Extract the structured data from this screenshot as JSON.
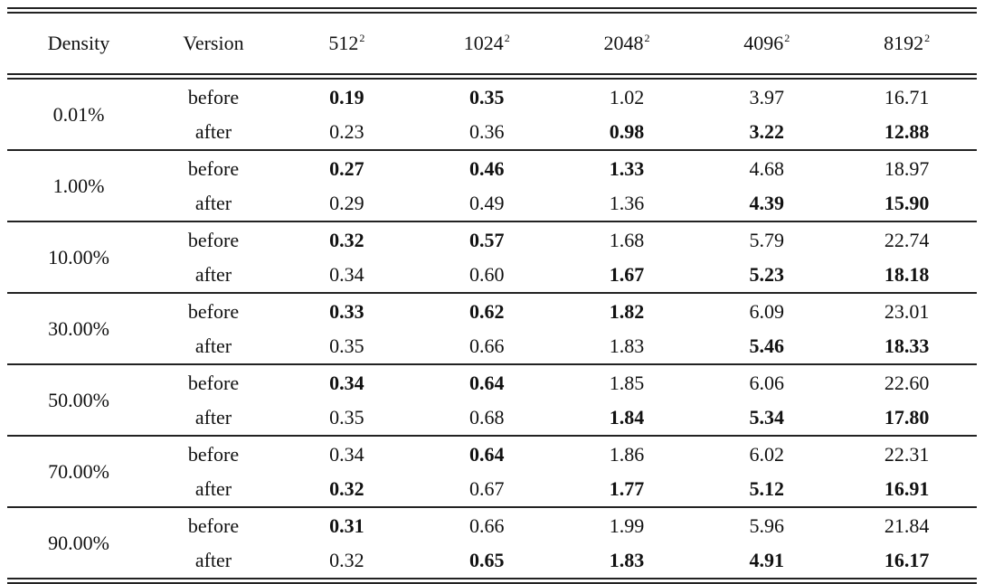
{
  "header": {
    "density": "Density",
    "version": "Version",
    "sizes": [
      {
        "base": "512",
        "exp": "2"
      },
      {
        "base": "1024",
        "exp": "2"
      },
      {
        "base": "2048",
        "exp": "2"
      },
      {
        "base": "4096",
        "exp": "2"
      },
      {
        "base": "8192",
        "exp": "2"
      }
    ]
  },
  "groups": [
    {
      "density": "0.01%",
      "rows": [
        {
          "version": "before",
          "values": [
            "0.19",
            "0.35",
            "1.02",
            "3.97",
            "16.71"
          ],
          "bold": [
            true,
            true,
            false,
            false,
            false
          ]
        },
        {
          "version": "after",
          "values": [
            "0.23",
            "0.36",
            "0.98",
            "3.22",
            "12.88"
          ],
          "bold": [
            false,
            false,
            true,
            true,
            true
          ]
        }
      ]
    },
    {
      "density": "1.00%",
      "rows": [
        {
          "version": "before",
          "values": [
            "0.27",
            "0.46",
            "1.33",
            "4.68",
            "18.97"
          ],
          "bold": [
            true,
            true,
            true,
            false,
            false
          ]
        },
        {
          "version": "after",
          "values": [
            "0.29",
            "0.49",
            "1.36",
            "4.39",
            "15.90"
          ],
          "bold": [
            false,
            false,
            false,
            true,
            true
          ]
        }
      ]
    },
    {
      "density": "10.00%",
      "rows": [
        {
          "version": "before",
          "values": [
            "0.32",
            "0.57",
            "1.68",
            "5.79",
            "22.74"
          ],
          "bold": [
            true,
            true,
            false,
            false,
            false
          ]
        },
        {
          "version": "after",
          "values": [
            "0.34",
            "0.60",
            "1.67",
            "5.23",
            "18.18"
          ],
          "bold": [
            false,
            false,
            true,
            true,
            true
          ]
        }
      ]
    },
    {
      "density": "30.00%",
      "rows": [
        {
          "version": "before",
          "values": [
            "0.33",
            "0.62",
            "1.82",
            "6.09",
            "23.01"
          ],
          "bold": [
            true,
            true,
            true,
            false,
            false
          ]
        },
        {
          "version": "after",
          "values": [
            "0.35",
            "0.66",
            "1.83",
            "5.46",
            "18.33"
          ],
          "bold": [
            false,
            false,
            false,
            true,
            true
          ]
        }
      ]
    },
    {
      "density": "50.00%",
      "rows": [
        {
          "version": "before",
          "values": [
            "0.34",
            "0.64",
            "1.85",
            "6.06",
            "22.60"
          ],
          "bold": [
            true,
            true,
            false,
            false,
            false
          ]
        },
        {
          "version": "after",
          "values": [
            "0.35",
            "0.68",
            "1.84",
            "5.34",
            "17.80"
          ],
          "bold": [
            false,
            false,
            true,
            true,
            true
          ]
        }
      ]
    },
    {
      "density": "70.00%",
      "rows": [
        {
          "version": "before",
          "values": [
            "0.34",
            "0.64",
            "1.86",
            "6.02",
            "22.31"
          ],
          "bold": [
            false,
            true,
            false,
            false,
            false
          ]
        },
        {
          "version": "after",
          "values": [
            "0.32",
            "0.67",
            "1.77",
            "5.12",
            "16.91"
          ],
          "bold": [
            true,
            false,
            true,
            true,
            true
          ]
        }
      ]
    },
    {
      "density": "90.00%",
      "rows": [
        {
          "version": "before",
          "values": [
            "0.31",
            "0.66",
            "1.99",
            "5.96",
            "21.84"
          ],
          "bold": [
            true,
            false,
            false,
            false,
            false
          ]
        },
        {
          "version": "after",
          "values": [
            "0.32",
            "0.65",
            "1.83",
            "4.91",
            "16.17"
          ],
          "bold": [
            false,
            true,
            true,
            true,
            true
          ]
        }
      ]
    }
  ]
}
